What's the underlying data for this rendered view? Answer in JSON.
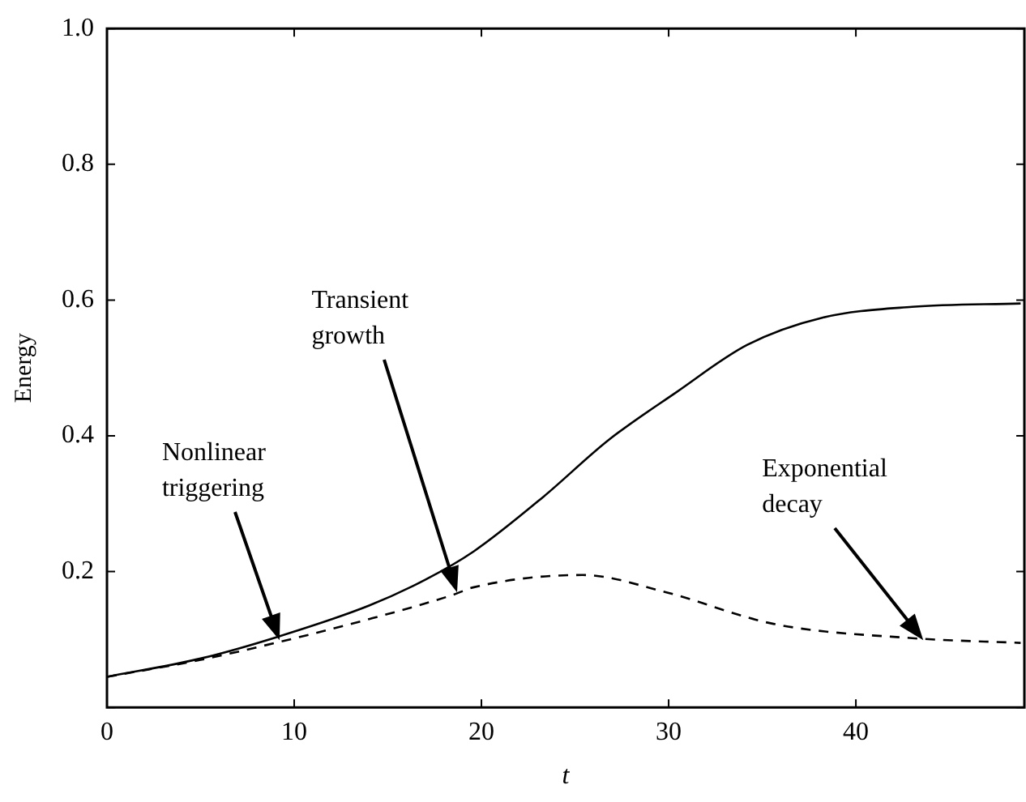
{
  "chart_data": {
    "type": "line",
    "xlabel": "t",
    "ylabel": "Energy",
    "xlim": [
      0,
      49
    ],
    "xticks": [
      0,
      10,
      20,
      30,
      40
    ],
    "ylim": [
      0,
      1
    ],
    "yticks": [
      {
        "value": 0,
        "label": null
      },
      0.2,
      0.4,
      0.6,
      0.8,
      {
        "value": 1,
        "label": "1.0"
      }
    ],
    "grid": false,
    "legend": false,
    "marker": "none",
    "series": [
      {
        "color": "#000000",
        "line_style": "solid",
        "x": [
          0,
          5,
          9,
          14,
          17,
          19.6,
          23.3,
          26.8,
          30.4,
          34.2,
          38.2,
          43,
          48.8
        ],
        "values": [
          0.045,
          0.072,
          0.103,
          0.15,
          0.188,
          0.23,
          0.31,
          0.394,
          0.464,
          0.534,
          0.574,
          0.59,
          0.595
        ]
      },
      {
        "color": "#000000",
        "line_style": "dashed",
        "x": [
          0,
          5,
          9,
          14,
          18.4,
          19.6,
          25.4,
          29.8,
          35.6,
          43,
          48.8
        ],
        "values": [
          0.045,
          0.07,
          0.095,
          0.13,
          0.165,
          0.177,
          0.195,
          0.17,
          0.123,
          0.102,
          0.095
        ]
      }
    ],
    "annotations": [
      "Nonlinear\ntriggering",
      "Transient\ngrowth",
      "Exponential\ndecay"
    ]
  }
}
